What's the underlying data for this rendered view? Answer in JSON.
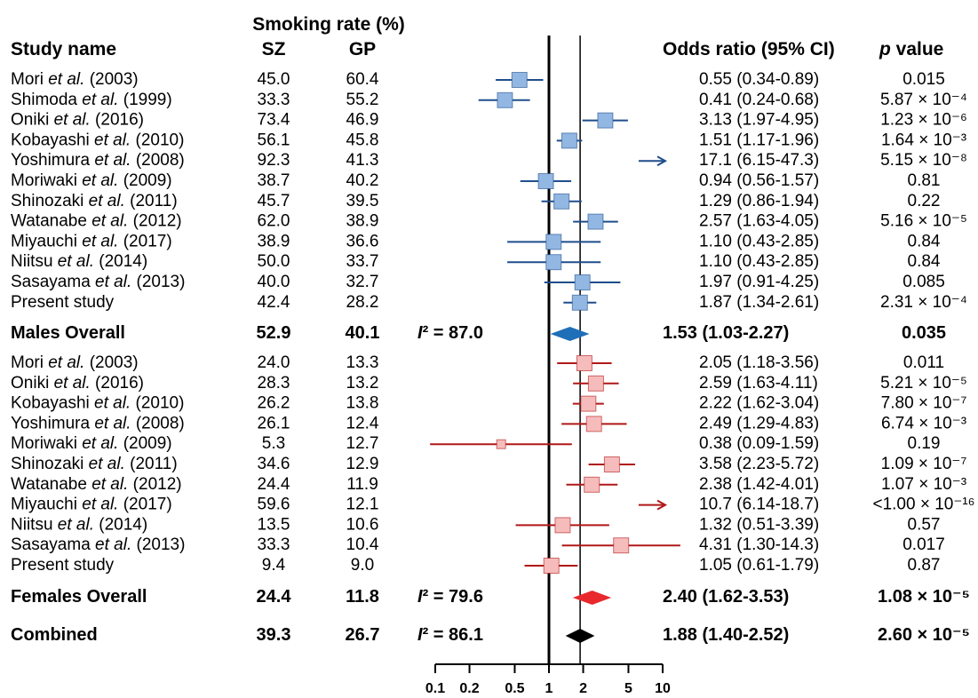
{
  "header": {
    "group_title": "Smoking rate (%)",
    "study": "Study name",
    "sz": "SZ",
    "gp": "GP",
    "or": "Odds ratio (95% CI)",
    "p": "p value"
  },
  "chart_data": {
    "type": "forest",
    "log_x": true,
    "xlim": [
      0.1,
      10
    ],
    "xticks": [
      0.1,
      0.2,
      0.5,
      1,
      2,
      5,
      10
    ],
    "reference": 1,
    "groups": [
      {
        "name": "Males Overall",
        "color": "#1f6fb8",
        "box_color": "#92b7e2",
        "line_color": "#1f4e8c",
        "studies": [
          {
            "name": "Mori et al. (2003)",
            "sz": "45.0",
            "gp": "60.4",
            "or": 0.55,
            "lo": 0.34,
            "hi": 0.89,
            "label": "0.55 (0.34-0.89)",
            "p": "0.015"
          },
          {
            "name": "Shimoda et al. (1999)",
            "sz": "33.3",
            "gp": "55.2",
            "or": 0.41,
            "lo": 0.24,
            "hi": 0.68,
            "label": "0.41 (0.24-0.68)",
            "p": "5.87 × 10⁻⁴"
          },
          {
            "name": "Oniki et al. (2016)",
            "sz": "73.4",
            "gp": "46.9",
            "or": 3.13,
            "lo": 1.97,
            "hi": 4.95,
            "label": "3.13 (1.97-4.95)",
            "p": "1.23 × 10⁻⁶"
          },
          {
            "name": "Kobayashi et al. (2010)",
            "sz": "56.1",
            "gp": "45.8",
            "or": 1.51,
            "lo": 1.17,
            "hi": 1.96,
            "label": "1.51 (1.17-1.96)",
            "p": "1.64 × 10⁻³"
          },
          {
            "name": "Yoshimura et al. (2008)",
            "sz": "92.3",
            "gp": "41.3",
            "or": 17.1,
            "lo": 6.15,
            "hi": 47.3,
            "label": "17.1 (6.15-47.3)",
            "p": "5.15 × 10⁻⁸"
          },
          {
            "name": "Moriwaki et al. (2009)",
            "sz": "38.7",
            "gp": "40.2",
            "or": 0.94,
            "lo": 0.56,
            "hi": 1.57,
            "label": "0.94 (0.56-1.57)",
            "p": "0.81"
          },
          {
            "name": "Shinozaki et al. (2011)",
            "sz": "45.7",
            "gp": "39.5",
            "or": 1.29,
            "lo": 0.86,
            "hi": 1.94,
            "label": "1.29 (0.86-1.94)",
            "p": "0.22"
          },
          {
            "name": "Watanabe et al. (2012)",
            "sz": "62.0",
            "gp": "38.9",
            "or": 2.57,
            "lo": 1.63,
            "hi": 4.05,
            "label": "2.57 (1.63-4.05)",
            "p": "5.16 × 10⁻⁵"
          },
          {
            "name": "Miyauchi et al. (2017)",
            "sz": "38.9",
            "gp": "36.6",
            "or": 1.1,
            "lo": 0.43,
            "hi": 2.85,
            "label": "1.10 (0.43-2.85)",
            "p": "0.84"
          },
          {
            "name": "Niitsu et al. (2014)",
            "sz": "50.0",
            "gp": "33.7",
            "or": 1.1,
            "lo": 0.43,
            "hi": 2.85,
            "label": "1.10 (0.43-2.85)",
            "p": "0.84"
          },
          {
            "name": "Sasayama et al. (2013)",
            "sz": "40.0",
            "gp": "32.7",
            "or": 1.97,
            "lo": 0.91,
            "hi": 4.25,
            "label": "1.97 (0.91-4.25)",
            "p": "0.085"
          },
          {
            "name": "Present study",
            "sz": "42.4",
            "gp": "28.2",
            "or": 1.87,
            "lo": 1.34,
            "hi": 2.61,
            "label": "1.87 (1.34-2.61)",
            "p": "2.31 × 10⁻⁴"
          }
        ],
        "overall": {
          "sz": "52.9",
          "gp": "40.1",
          "i2": "I² = 87.0",
          "or": 1.53,
          "lo": 1.03,
          "hi": 2.27,
          "label": "1.53 (1.03-2.27)",
          "p": "0.035"
        }
      },
      {
        "name": "Females Overall",
        "color": "#e8282d",
        "box_color": "#f6bcbc",
        "line_color": "#b01818",
        "studies": [
          {
            "name": "Mori et al. (2003)",
            "sz": "24.0",
            "gp": "13.3",
            "or": 2.05,
            "lo": 1.18,
            "hi": 3.56,
            "label": "2.05 (1.18-3.56)",
            "p": "0.011"
          },
          {
            "name": "Oniki et al. (2016)",
            "sz": "28.3",
            "gp": "13.2",
            "or": 2.59,
            "lo": 1.63,
            "hi": 4.11,
            "label": "2.59 (1.63-4.11)",
            "p": "5.21 × 10⁻⁵"
          },
          {
            "name": "Kobayashi et al. (2010)",
            "sz": "26.2",
            "gp": "13.8",
            "or": 2.22,
            "lo": 1.62,
            "hi": 3.04,
            "label": "2.22 (1.62-3.04)",
            "p": "7.80 × 10⁻⁷"
          },
          {
            "name": "Yoshimura et al. (2008)",
            "sz": "26.1",
            "gp": "12.4",
            "or": 2.49,
            "lo": 1.29,
            "hi": 4.83,
            "label": "2.49 (1.29-4.83)",
            "p": "6.74 × 10⁻³"
          },
          {
            "name": "Moriwaki et al. (2009)",
            "sz": "5.3",
            "gp": "12.7",
            "or": 0.38,
            "lo": 0.09,
            "hi": 1.59,
            "label": "0.38 (0.09-1.59)",
            "p": "0.19"
          },
          {
            "name": "Shinozaki et al. (2011)",
            "sz": "34.6",
            "gp": "12.9",
            "or": 3.58,
            "lo": 2.23,
            "hi": 5.72,
            "label": "3.58 (2.23-5.72)",
            "p": "1.09 × 10⁻⁷"
          },
          {
            "name": "Watanabe et al. (2012)",
            "sz": "24.4",
            "gp": "11.9",
            "or": 2.38,
            "lo": 1.42,
            "hi": 4.01,
            "label": "2.38 (1.42-4.01)",
            "p": "1.07 × 10⁻³"
          },
          {
            "name": "Miyauchi et al. (2017)",
            "sz": "59.6",
            "gp": "12.1",
            "or": 10.7,
            "lo": 6.14,
            "hi": 18.7,
            "label": "10.7 (6.14-18.7)",
            "p": "<1.00 × 10⁻¹⁶"
          },
          {
            "name": "Niitsu et al. (2014)",
            "sz": "13.5",
            "gp": "10.6",
            "or": 1.32,
            "lo": 0.51,
            "hi": 3.39,
            "label": "1.32 (0.51-3.39)",
            "p": "0.57"
          },
          {
            "name": "Sasayama et al. (2013)",
            "sz": "33.3",
            "gp": "10.4",
            "or": 4.31,
            "lo": 1.3,
            "hi": 14.3,
            "label": "4.31 (1.30-14.3)",
            "p": "0.017"
          },
          {
            "name": "Present study",
            "sz": "9.4",
            "gp": "9.0",
            "or": 1.05,
            "lo": 0.61,
            "hi": 1.79,
            "label": "1.05 (0.61-1.79)",
            "p": "0.87"
          }
        ],
        "overall": {
          "sz": "24.4",
          "gp": "11.8",
          "i2": "I² = 79.6",
          "or": 2.4,
          "lo": 1.62,
          "hi": 3.53,
          "label": "2.40 (1.62-3.53)",
          "p": "1.08 × 10⁻⁵"
        }
      }
    ],
    "combined": {
      "name": "Combined",
      "color": "#000000",
      "sz": "39.3",
      "gp": "26.7",
      "i2": "I² = 86.1",
      "or": 1.88,
      "lo": 1.4,
      "hi": 2.52,
      "label": "1.88 (1.40-2.52)",
      "p": "2.60 × 10⁻⁵"
    }
  }
}
